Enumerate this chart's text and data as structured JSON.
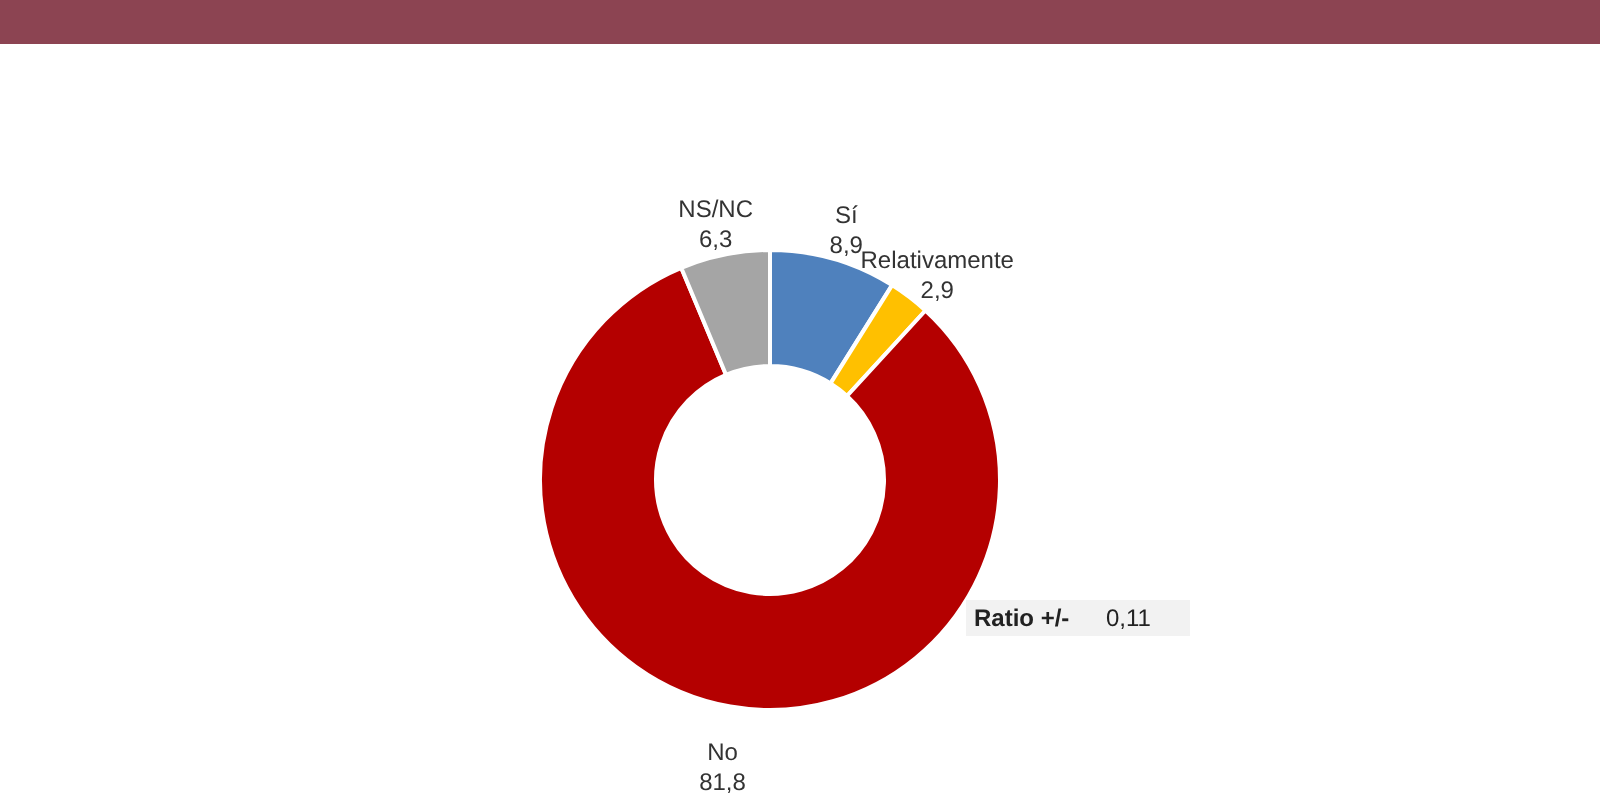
{
  "chart_data": {
    "type": "donut",
    "categories": [
      "Sí",
      "Relativamente",
      "No",
      "NS/NC"
    ],
    "values": [
      8.9,
      2.9,
      81.8,
      6.3
    ],
    "value_labels": [
      "8,9",
      "2,9",
      "81,8",
      "6,3"
    ],
    "colors": [
      "#4f81bd",
      "#ffc000",
      "#b40000",
      "#a5a5a5"
    ],
    "annotations": [
      "Ratio +/-",
      "0,11"
    ]
  }
}
